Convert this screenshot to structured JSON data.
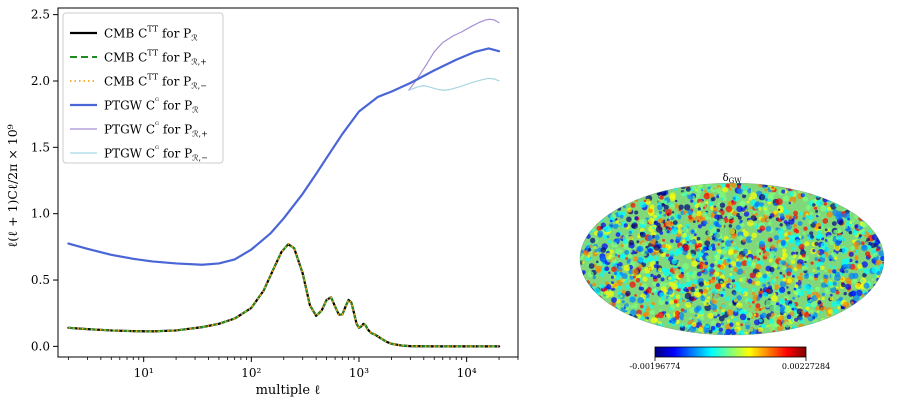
{
  "chart_data": [
    {
      "type": "line",
      "xscale": "log",
      "xlim": [
        1.6,
        30000
      ],
      "ylim": [
        -0.08,
        2.55
      ],
      "xlabel": "multiple ℓ",
      "ylabel": "ℓ(ℓ + 1)Cℓ/2π × 10⁹",
      "x_ticks": [
        {
          "value": 10,
          "label": "10¹"
        },
        {
          "value": 100,
          "label": "10²"
        },
        {
          "value": 1000,
          "label": "10³"
        },
        {
          "value": 10000,
          "label": "10⁴"
        }
      ],
      "y_ticks": [
        {
          "value": 0.0,
          "label": "0.0"
        },
        {
          "value": 0.5,
          "label": "0.5"
        },
        {
          "value": 1.0,
          "label": "1.0"
        },
        {
          "value": 1.5,
          "label": "1.5"
        },
        {
          "value": 2.0,
          "label": "2.0"
        },
        {
          "value": 2.5,
          "label": "2.5"
        }
      ],
      "legend_position": "top-left",
      "series": [
        {
          "name": "PTGW Cℓᴳ for Pℛ,+",
          "legend_main": "PTGW C",
          "legend_sup": "ᴳ",
          "legend_tail": " for P",
          "legend_sub": "ℛ,+",
          "color": "#a58fd6",
          "dash": "",
          "width": 1.2,
          "x": [
            2900,
            3500,
            4200,
            5000,
            6000,
            7500,
            9000,
            11000,
            13000,
            15000,
            16500,
            18000,
            20000
          ],
          "y": [
            1.93,
            2.02,
            2.12,
            2.22,
            2.29,
            2.34,
            2.37,
            2.41,
            2.44,
            2.46,
            2.465,
            2.46,
            2.44
          ]
        },
        {
          "name": "PTGW Cℓᴳ for Pℛ,−",
          "legend_main": "PTGW C",
          "legend_sup": "ᴳ",
          "legend_tail": " for P",
          "legend_sub": "ℛ,−",
          "color": "#a7d6e2",
          "dash": "",
          "width": 1.2,
          "x": [
            2900,
            3500,
            4000,
            4500,
            5200,
            6000,
            7000,
            8500,
            10000,
            12000,
            14000,
            16000,
            18000,
            20000
          ],
          "y": [
            1.93,
            1.955,
            1.965,
            1.955,
            1.94,
            1.93,
            1.935,
            1.955,
            1.975,
            1.995,
            2.01,
            2.02,
            2.015,
            2.0
          ]
        },
        {
          "name": "PTGW Cℓᴳ for Pℛ",
          "legend_main": "PTGW C",
          "legend_sup": "ᴳ",
          "legend_tail": " for P",
          "legend_sub": "ℛ",
          "color": "#4a66d6",
          "dash": "",
          "width": 2.2,
          "x": [
            2,
            3,
            5,
            8,
            12,
            20,
            35,
            50,
            70,
            100,
            150,
            200,
            300,
            400,
            500,
            700,
            1000,
            1500,
            2000,
            3000,
            5000,
            8000,
            12000,
            16000,
            20000
          ],
          "y": [
            0.775,
            0.735,
            0.69,
            0.66,
            0.64,
            0.625,
            0.615,
            0.625,
            0.655,
            0.73,
            0.85,
            0.965,
            1.15,
            1.3,
            1.42,
            1.6,
            1.77,
            1.88,
            1.92,
            1.985,
            2.08,
            2.16,
            2.22,
            2.245,
            2.225
          ]
        },
        {
          "name": "CMB Cℓᵀᵀ for Pℛ",
          "legend_main": "CMB C",
          "legend_sup": "TT",
          "legend_tail": " for P",
          "legend_sub": "ℛ",
          "color": "#000000",
          "dash": "",
          "width": 2.2,
          "x": [
            2,
            3,
            5,
            8,
            12,
            20,
            35,
            50,
            70,
            100,
            130,
            160,
            190,
            220,
            250,
            300,
            350,
            400,
            450,
            500,
            550,
            600,
            650,
            700,
            750,
            800,
            850,
            900,
            950,
            1000,
            1050,
            1100,
            1150,
            1200,
            1300,
            1400,
            1600,
            1800,
            2000,
            2500,
            3000,
            5000,
            10000,
            20000
          ],
          "y": [
            0.14,
            0.13,
            0.12,
            0.115,
            0.113,
            0.12,
            0.145,
            0.17,
            0.21,
            0.29,
            0.42,
            0.58,
            0.71,
            0.77,
            0.74,
            0.55,
            0.31,
            0.23,
            0.27,
            0.35,
            0.37,
            0.3,
            0.24,
            0.24,
            0.3,
            0.35,
            0.33,
            0.25,
            0.17,
            0.14,
            0.15,
            0.17,
            0.16,
            0.13,
            0.1,
            0.09,
            0.06,
            0.035,
            0.02,
            0.006,
            0.002,
            0.0,
            0.0,
            0.0
          ]
        },
        {
          "name": "CMB Cℓᵀᵀ for Pℛ,+",
          "legend_main": "CMB C",
          "legend_sup": "TT",
          "legend_tail": " for P",
          "legend_sub": "ℛ,+",
          "color": "#1e8c1e",
          "dash": "7,4",
          "width": 2.0,
          "same_as": 3
        },
        {
          "name": "CMB Cℓᵀᵀ for Pℛ,−",
          "legend_main": "CMB C",
          "legend_sup": "TT",
          "legend_tail": " for P",
          "legend_sub": "ℛ,−",
          "color": "#f2a81e",
          "dash": "1.5,3",
          "width": 1.8,
          "same_as": 3
        }
      ],
      "legend_order": [
        3,
        4,
        5,
        2,
        0,
        1
      ]
    },
    {
      "type": "heatmap",
      "projection": "mollweide",
      "title": "δGW",
      "title_main": "δ",
      "title_sub": "GW",
      "colorbar_min": "-0.00196774",
      "colorbar_max": "0.00227284",
      "colormap": [
        "#00007f",
        "#0000ff",
        "#007fff",
        "#00ffff",
        "#7fff7f",
        "#ffff00",
        "#ff7f00",
        "#ff0000",
        "#7f0000"
      ],
      "base_color": "#7fd97a"
    }
  ]
}
